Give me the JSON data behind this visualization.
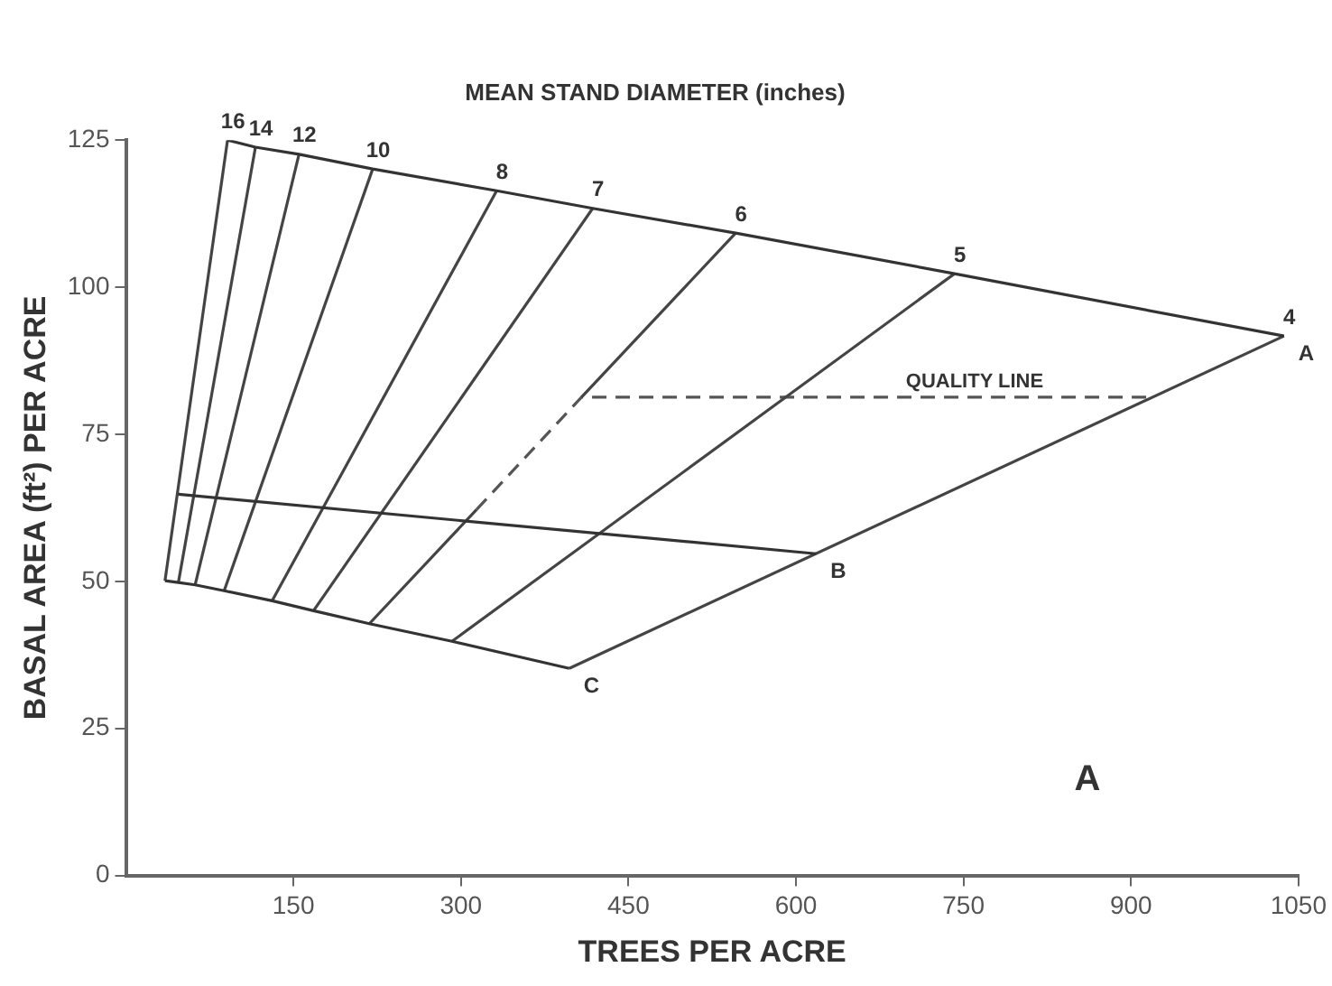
{
  "chart_data": {
    "type": "line",
    "title": "MEAN STAND DIAMETER (inches)",
    "xlabel": "TREES PER ACRE",
    "ylabel": "BASAL AREA (ft²) PER ACRE",
    "xlim": [
      0,
      1050
    ],
    "xticks": [
      150,
      300,
      450,
      600,
      750,
      900,
      1050
    ],
    "ylim": [
      0,
      125
    ],
    "yticks": [
      0,
      25,
      50,
      75,
      100,
      125
    ],
    "grid": false,
    "legend": false,
    "marker": "none",
    "line_style": "solid",
    "series": [
      {
        "name": "A",
        "color": "#333333",
        "x": [
          91,
          116,
          155,
          221,
          332,
          418,
          546,
          742,
          1037
        ],
        "values": [
          125,
          123.8,
          122.6,
          120.1,
          116.4,
          113.4,
          109.2,
          102.3,
          91.7
        ]
      },
      {
        "name": "B",
        "color": "#333333",
        "x": [
          47,
          618
        ],
        "values": [
          64.8,
          54.7
        ]
      },
      {
        "name": "C",
        "color": "#333333",
        "x": [
          35,
          47,
          62,
          88,
          131,
          168,
          218,
          292,
          397
        ],
        "values": [
          50.1,
          49.8,
          49.4,
          48.4,
          46.7,
          45,
          42.8,
          39.8,
          35.2
        ]
      },
      {
        "name": "16",
        "color": "#444444",
        "x": [
          35,
          91
        ],
        "values": [
          50.1,
          125
        ]
      },
      {
        "name": "14",
        "color": "#444444",
        "x": [
          47,
          116
        ],
        "values": [
          49.8,
          123.8
        ]
      },
      {
        "name": "12",
        "color": "#444444",
        "x": [
          62,
          155
        ],
        "values": [
          49.4,
          122.6
        ]
      },
      {
        "name": "10",
        "color": "#444444",
        "x": [
          88,
          221
        ],
        "values": [
          48.4,
          120.1
        ]
      },
      {
        "name": "8",
        "color": "#444444",
        "x": [
          131,
          332
        ],
        "values": [
          46.7,
          116.4
        ]
      },
      {
        "name": "7",
        "color": "#444444",
        "x": [
          168,
          418
        ],
        "values": [
          45,
          113.4
        ]
      },
      {
        "name": "6",
        "color": "#444444",
        "x": [
          218,
          314,
          408,
          546
        ],
        "values": [
          42.8,
          62.2,
          81.3,
          109.2
        ]
      },
      {
        "name": "5",
        "color": "#444444",
        "x": [
          292,
          742
        ],
        "values": [
          39.8,
          102.3
        ]
      },
      {
        "name": "4",
        "color": "#444444",
        "x": [
          397,
          1037
        ],
        "values": [
          35.2,
          91.7
        ]
      },
      {
        "name": "QUALITY LINE",
        "color": "#555555",
        "line_style": "dashed",
        "x": [
          314,
          408,
          918
        ],
        "values": [
          62.2,
          81.3,
          81.3
        ]
      }
    ],
    "annotations": [
      "A"
    ]
  }
}
